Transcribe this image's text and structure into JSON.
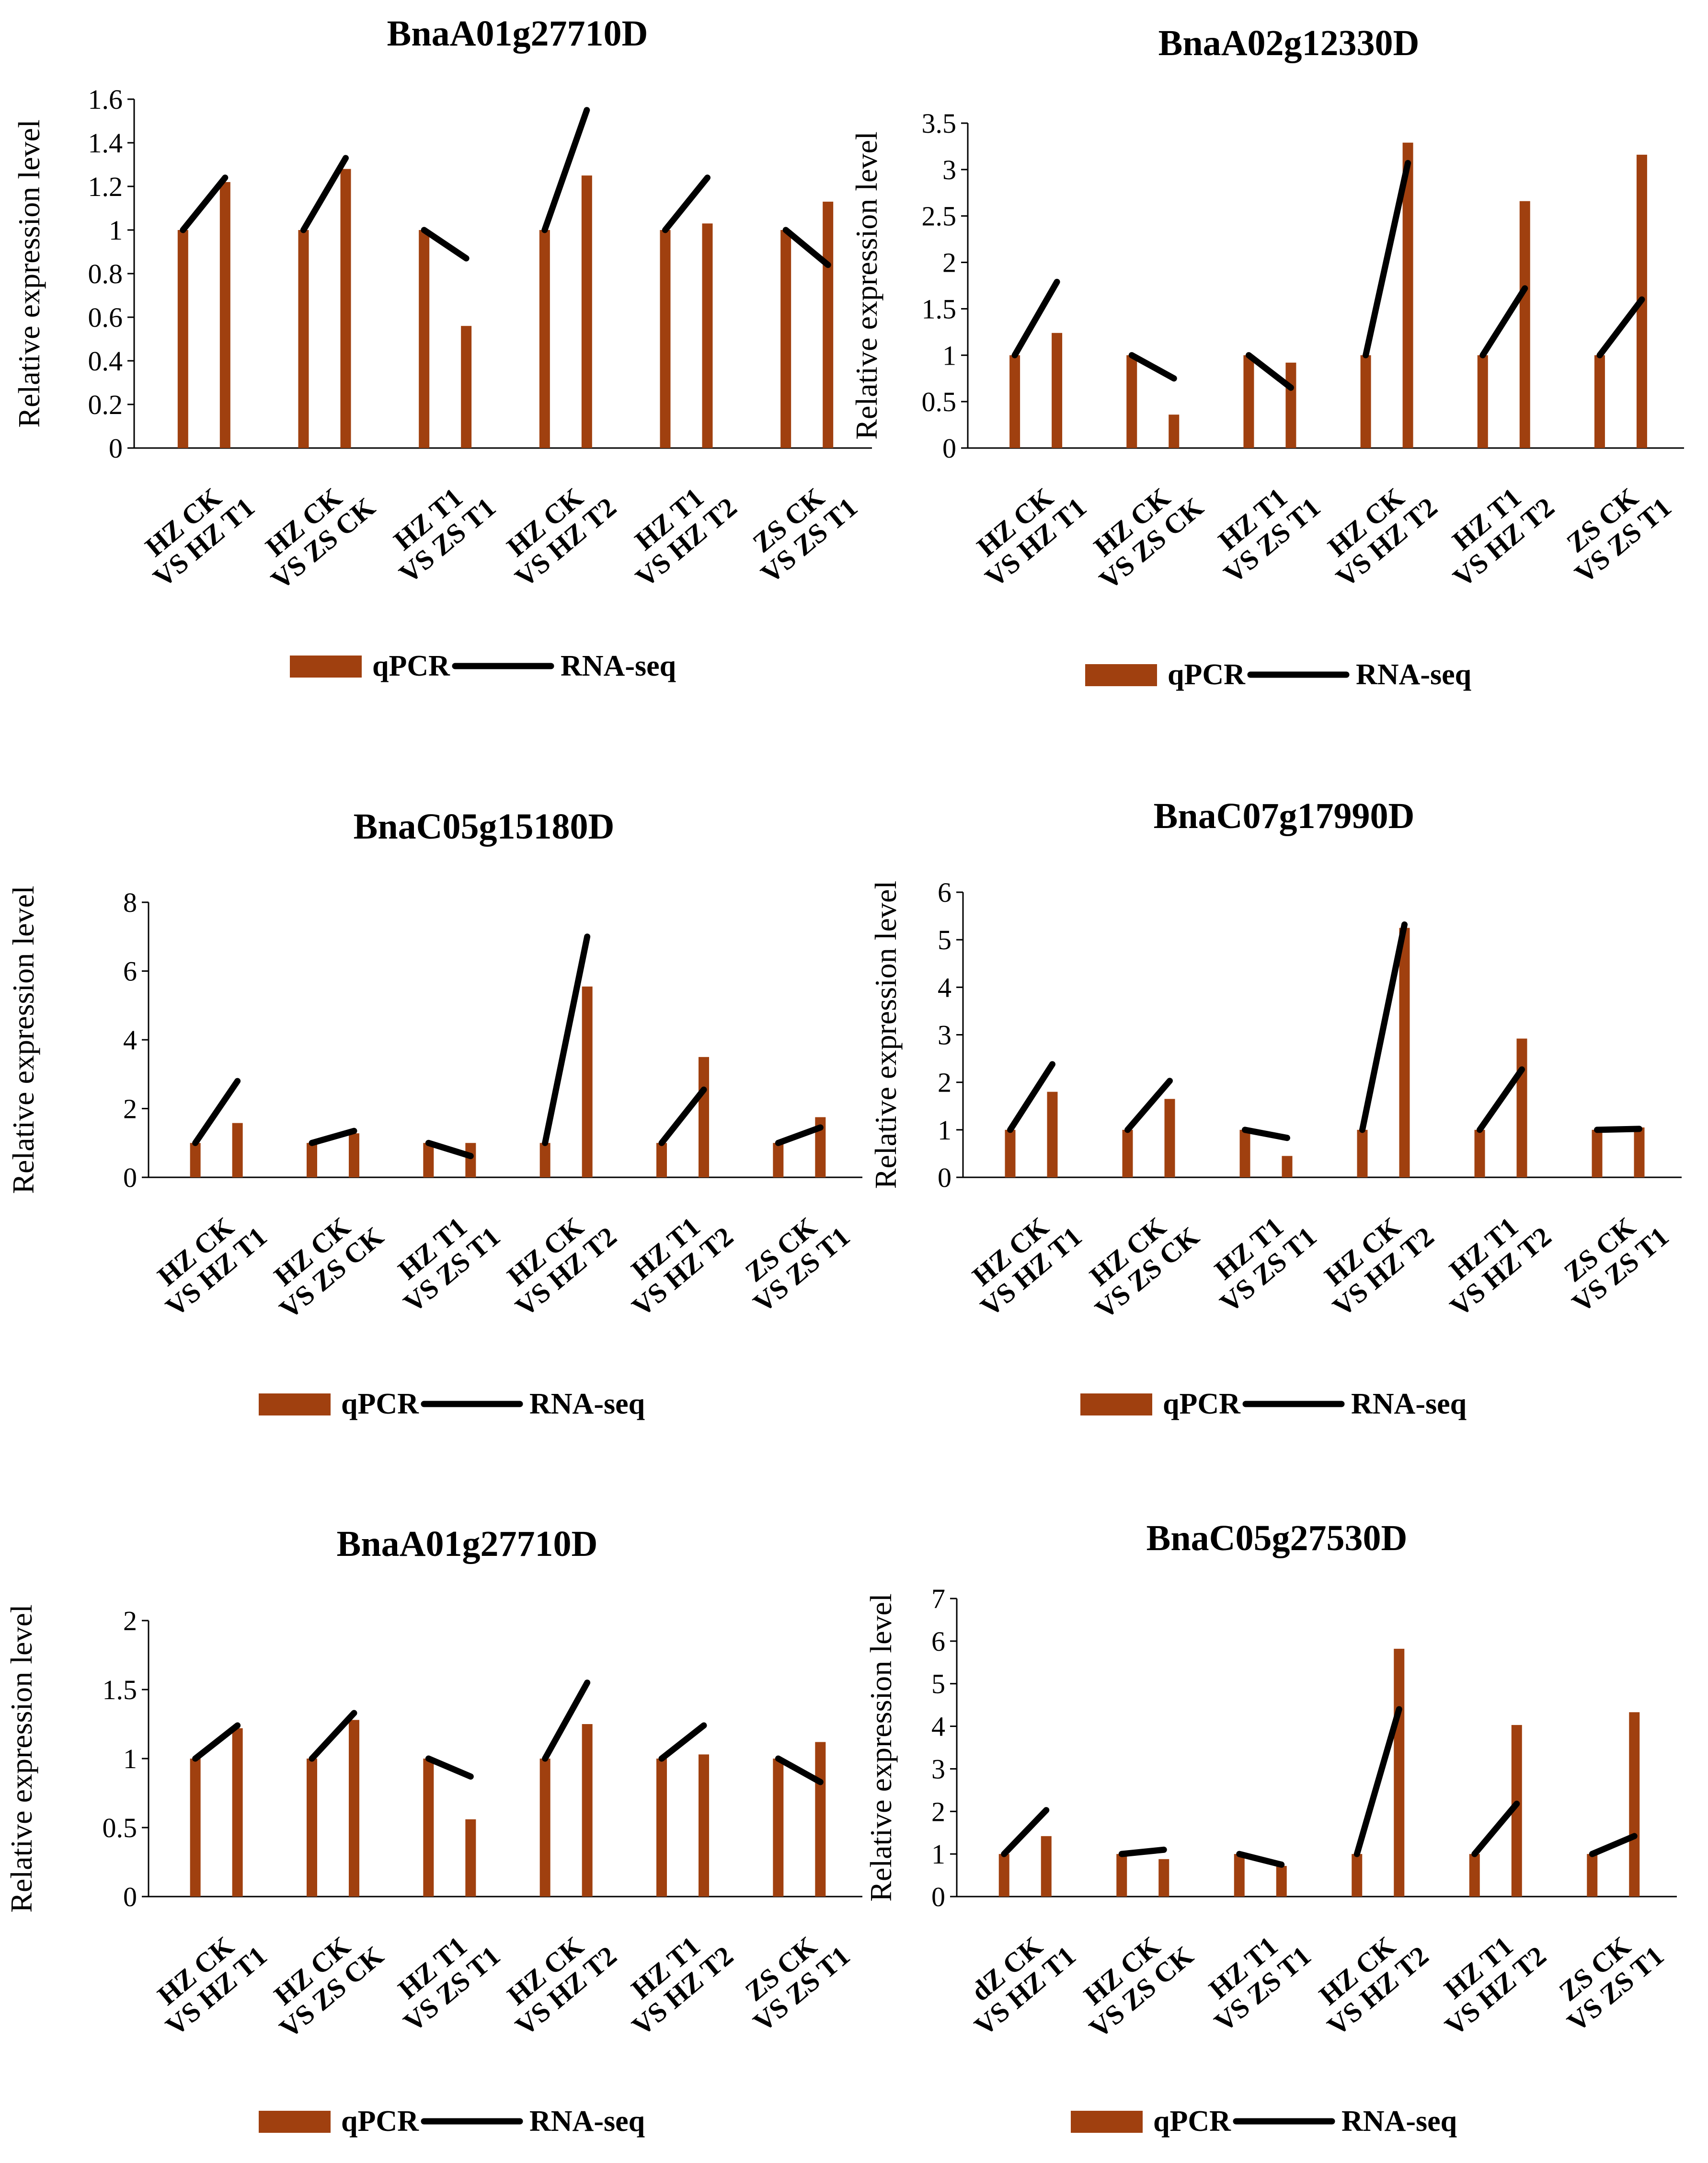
{
  "colors": {
    "qpcr": "#a0400f",
    "rnaseq": "#000000",
    "axis": "#000000"
  },
  "legend": {
    "qpcr_label": "qPCR",
    "rnaseq_label": "RNA-seq"
  },
  "chart_data": [
    {
      "type": "bar+line",
      "title": "BnaA01g27710D",
      "ylabel": "Relative expression level",
      "ylim": [
        0,
        1.6
      ],
      "yticks": [
        "0",
        "0.2",
        "0.4",
        "0.6",
        "0.8",
        "1",
        "1.2",
        "1.4",
        "1.6"
      ],
      "categories": [
        [
          "HZ CK",
          "VS HZ T1"
        ],
        [
          "HZ CK",
          "VS ZS CK"
        ],
        [
          "HZ T1",
          "VS ZS T1"
        ],
        [
          "HZ CK",
          "VS HZ T2"
        ],
        [
          "HZ T1",
          "VS HZ T2"
        ],
        [
          "ZS CK",
          "VS ZS T1"
        ]
      ],
      "series": [
        {
          "name": "qPCR",
          "type": "bar",
          "pairs": [
            [
              1,
              1.22
            ],
            [
              1,
              1.28
            ],
            [
              1,
              0.56
            ],
            [
              1,
              1.25
            ],
            [
              1,
              1.03
            ],
            [
              1,
              1.13
            ]
          ]
        },
        {
          "name": "RNA-seq",
          "type": "line",
          "pairs": [
            [
              1,
              1.24
            ],
            [
              1,
              1.33
            ],
            [
              1,
              0.87
            ],
            [
              1,
              1.55
            ],
            [
              1,
              1.24
            ],
            [
              1,
              0.84
            ]
          ]
        }
      ]
    },
    {
      "type": "bar+line",
      "title": "BnaA02g12330D",
      "ylabel": "Relative expression level",
      "ylim": [
        0,
        3.5
      ],
      "yticks": [
        "0",
        "0.5",
        "1",
        "1.5",
        "2",
        "2.5",
        "3",
        "3.5"
      ],
      "categories": [
        [
          "HZ CK",
          "VS HZ T1"
        ],
        [
          "HZ CK",
          "VS ZS CK"
        ],
        [
          "HZ T1",
          "VS ZS T1"
        ],
        [
          "HZ CK",
          "VS HZ T2"
        ],
        [
          "HZ T1",
          "VS HZ T2"
        ],
        [
          "ZS CK",
          "VS ZS T1"
        ]
      ],
      "series": [
        {
          "name": "qPCR",
          "type": "bar",
          "pairs": [
            [
              1,
              1.24
            ],
            [
              1,
              0.36
            ],
            [
              1,
              0.92
            ],
            [
              1,
              3.29
            ],
            [
              1,
              2.66
            ],
            [
              1,
              3.16
            ]
          ]
        },
        {
          "name": "RNA-seq",
          "type": "line",
          "pairs": [
            [
              1,
              1.79
            ],
            [
              1,
              0.75
            ],
            [
              1,
              0.65
            ],
            [
              1,
              3.07
            ],
            [
              1,
              1.72
            ],
            [
              1,
              1.6
            ]
          ]
        }
      ]
    },
    {
      "type": "bar+line",
      "title": "BnaC05g15180D",
      "ylabel": "Relative expression level",
      "ylim": [
        0,
        8
      ],
      "yticks": [
        "0",
        "2",
        "4",
        "6",
        "8"
      ],
      "categories": [
        [
          "HZ CK",
          "VS HZ T1"
        ],
        [
          "HZ CK",
          "VS ZS CK"
        ],
        [
          "HZ T1",
          "VS ZS T1"
        ],
        [
          "HZ CK",
          "VS HZ T2"
        ],
        [
          "HZ T1",
          "VS HZ T2"
        ],
        [
          "ZS CK",
          "VS ZS T1"
        ]
      ],
      "series": [
        {
          "name": "qPCR",
          "type": "bar",
          "pairs": [
            [
              1,
              1.58
            ],
            [
              1,
              1.28
            ],
            [
              1,
              1
            ],
            [
              1,
              5.55
            ],
            [
              1,
              3.5
            ],
            [
              1,
              1.75
            ]
          ]
        },
        {
          "name": "RNA-seq",
          "type": "line",
          "pairs": [
            [
              1,
              2.8
            ],
            [
              1,
              1.35
            ],
            [
              1,
              0.62
            ],
            [
              1,
              7.0
            ],
            [
              1,
              2.55
            ],
            [
              1,
              1.45
            ]
          ]
        }
      ]
    },
    {
      "type": "bar+line",
      "title": "BnaC07g17990D",
      "ylabel": "Relative expression level",
      "ylim": [
        0,
        6
      ],
      "yticks": [
        "0",
        "1",
        "2",
        "3",
        "4",
        "5",
        "6"
      ],
      "categories": [
        [
          "HZ CK",
          "VS HZ T1"
        ],
        [
          "HZ CK",
          "VS ZS CK"
        ],
        [
          "HZ T1",
          "VS ZS T1"
        ],
        [
          "HZ CK",
          "VS HZ T2"
        ],
        [
          "HZ T1",
          "VS HZ T2"
        ],
        [
          "ZS CK",
          "VS ZS T1"
        ]
      ],
      "series": [
        {
          "name": "qPCR",
          "type": "bar",
          "pairs": [
            [
              1,
              1.8
            ],
            [
              1,
              1.65
            ],
            [
              1,
              0.45
            ],
            [
              1,
              5.25
            ],
            [
              1,
              2.92
            ],
            [
              1,
              1.05
            ]
          ]
        },
        {
          "name": "RNA-seq",
          "type": "line",
          "pairs": [
            [
              1,
              2.38
            ],
            [
              1,
              2.03
            ],
            [
              1,
              0.83
            ],
            [
              1,
              5.32
            ],
            [
              1,
              2.27
            ],
            [
              1,
              1.02
            ]
          ]
        }
      ]
    },
    {
      "type": "bar+line",
      "title": "BnaA01g27710D",
      "ylabel": "Relative expression level",
      "ylim": [
        0,
        2
      ],
      "yticks": [
        "0",
        "0.5",
        "1",
        "1.5",
        "2"
      ],
      "categories": [
        [
          "HZ CK",
          "VS HZ T1"
        ],
        [
          "HZ CK",
          "VS ZS CK"
        ],
        [
          "HZ T1",
          "VS ZS T1"
        ],
        [
          "HZ CK",
          "VS HZ T2"
        ],
        [
          "HZ T1",
          "VS HZ T2"
        ],
        [
          "ZS CK",
          "VS ZS T1"
        ]
      ],
      "series": [
        {
          "name": "qPCR",
          "type": "bar",
          "pairs": [
            [
              1,
              1.22
            ],
            [
              1,
              1.28
            ],
            [
              1,
              0.56
            ],
            [
              1,
              1.25
            ],
            [
              1,
              1.03
            ],
            [
              1,
              1.12
            ]
          ]
        },
        {
          "name": "RNA-seq",
          "type": "line",
          "pairs": [
            [
              1,
              1.24
            ],
            [
              1,
              1.33
            ],
            [
              1,
              0.87
            ],
            [
              1,
              1.55
            ],
            [
              1,
              1.24
            ],
            [
              1,
              0.83
            ]
          ]
        }
      ]
    },
    {
      "type": "bar+line",
      "title": "BnaC05g27530D",
      "ylabel": "Relative expression level",
      "ylim": [
        0,
        7
      ],
      "yticks": [
        "0",
        "1",
        "2",
        "3",
        "4",
        "5",
        "6",
        "7"
      ],
      "categories": [
        [
          "dZ CK",
          "VS HZ T1"
        ],
        [
          "HZ CK",
          "VS ZS CK"
        ],
        [
          "HZ T1",
          "VS ZS T1"
        ],
        [
          "HZ CK",
          "VS HZ T2"
        ],
        [
          "HZ T1",
          "VS HZ T2"
        ],
        [
          "ZS CK",
          "VS ZS T1"
        ]
      ],
      "series": [
        {
          "name": "qPCR",
          "type": "bar",
          "pairs": [
            [
              1,
              1.42
            ],
            [
              1,
              0.88
            ],
            [
              1,
              0.72
            ],
            [
              1,
              5.82
            ],
            [
              1,
              4.03
            ],
            [
              1,
              4.33
            ]
          ]
        },
        {
          "name": "RNA-seq",
          "type": "line",
          "pairs": [
            [
              1,
              2.03
            ],
            [
              1,
              1.1
            ],
            [
              1,
              0.75
            ],
            [
              1,
              4.4
            ],
            [
              1,
              2.18
            ],
            [
              1,
              1.42
            ]
          ]
        }
      ]
    }
  ]
}
